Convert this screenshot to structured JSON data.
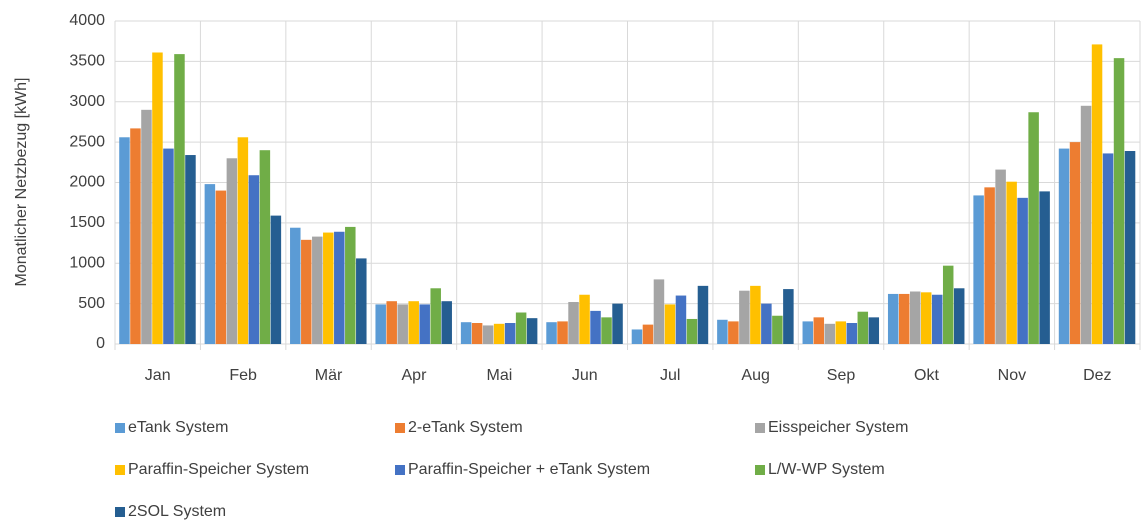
{
  "chart_data": {
    "type": "bar",
    "y_label": "Monatlicher Netzbezug [kWh]",
    "categories": [
      "Jan",
      "Feb",
      "Mär",
      "Apr",
      "Mai",
      "Jun",
      "Jul",
      "Aug",
      "Sep",
      "Okt",
      "Nov",
      "Dez"
    ],
    "series": [
      {
        "name": "eTank System",
        "color": "#5b9bd5",
        "values": [
          2560,
          1980,
          1440,
          490,
          270,
          270,
          180,
          300,
          280,
          620,
          1840,
          2420
        ]
      },
      {
        "name": "2-eTank System",
        "color": "#ed7d31",
        "values": [
          2670,
          1900,
          1290,
          530,
          260,
          280,
          240,
          280,
          330,
          620,
          1940,
          2500
        ]
      },
      {
        "name": "Eisspeicher System",
        "color": "#a5a5a5",
        "values": [
          2900,
          2300,
          1330,
          490,
          230,
          520,
          800,
          660,
          250,
          650,
          2160,
          2950
        ]
      },
      {
        "name": "Paraffin-Speicher System",
        "color": "#ffc000",
        "values": [
          3610,
          2560,
          1380,
          530,
          250,
          610,
          490,
          720,
          280,
          640,
          2010,
          3710
        ]
      },
      {
        "name": "Paraffin-Speicher + eTank System",
        "color": "#4472c4",
        "values": [
          2420,
          2090,
          1390,
          490,
          260,
          410,
          600,
          500,
          260,
          610,
          1810,
          2360
        ]
      },
      {
        "name": "L/W-WP System",
        "color": "#70ad47",
        "values": [
          3590,
          2400,
          1450,
          690,
          390,
          330,
          310,
          350,
          400,
          970,
          2870,
          3540
        ]
      },
      {
        "name": "2SOL System",
        "color": "#255e91",
        "values": [
          2340,
          1590,
          1060,
          530,
          320,
          500,
          720,
          680,
          330,
          690,
          1890,
          2390
        ]
      }
    ],
    "ylim": [
      0,
      4000
    ],
    "yticks": [
      0,
      500,
      1000,
      1500,
      2000,
      2500,
      3000,
      3500,
      4000
    ],
    "grid": true,
    "legend": "bottom"
  }
}
